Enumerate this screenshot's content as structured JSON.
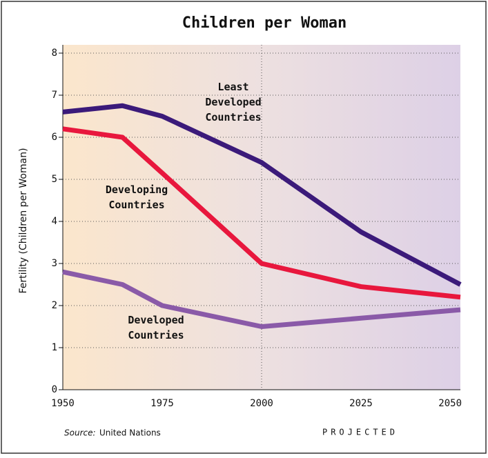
{
  "chart_data": {
    "type": "line",
    "title": "Children per Woman",
    "y_label": "Fertility (Children per Woman)",
    "x": [
      1950,
      1965,
      1975,
      2000,
      2025,
      2050
    ],
    "series": [
      {
        "name": "Least Developed Countries",
        "color": "#3b1a7a",
        "values": [
          6.6,
          6.75,
          6.5,
          5.4,
          3.75,
          2.5
        ]
      },
      {
        "name": "Developing Countries",
        "color": "#e8173d",
        "values": [
          6.2,
          6.0,
          5.15,
          3.0,
          2.45,
          2.2
        ]
      },
      {
        "name": "Developed Countries",
        "color": "#8a5aa8",
        "values": [
          2.8,
          2.5,
          2.0,
          1.5,
          1.7,
          1.9
        ]
      }
    ],
    "xlim": [
      1950,
      2050
    ],
    "xticks": [
      1950,
      1975,
      2000,
      2025,
      2050
    ],
    "ylim": [
      0,
      8
    ],
    "yticks": [
      0,
      1,
      2,
      3,
      4,
      5,
      6,
      7,
      8
    ],
    "grid": true,
    "projection_start": 2000,
    "projection_label": "PROJECTED",
    "source_label": "Source:",
    "source": "United Nations"
  }
}
